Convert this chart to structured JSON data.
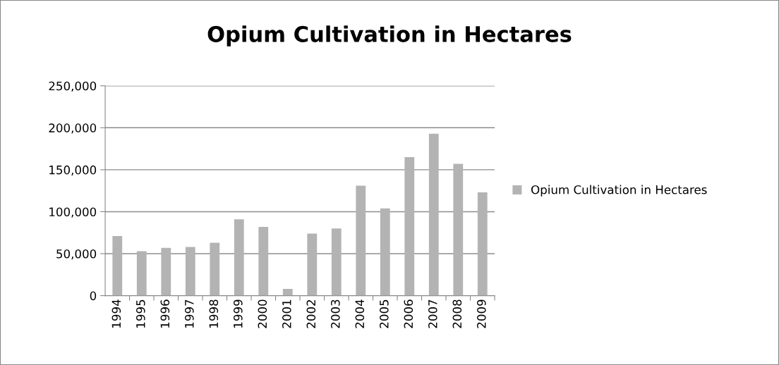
{
  "chart_data": {
    "type": "bar",
    "title": "Opium Cultivation in Hectares",
    "categories": [
      "1994",
      "1995",
      "1996",
      "1997",
      "1998",
      "1999",
      "2000",
      "2001",
      "2002",
      "2003",
      "2004",
      "2005",
      "2006",
      "2007",
      "2008",
      "2009"
    ],
    "series": [
      {
        "name": "Opium Cultivation in Hectares",
        "color": "#b3b3b3",
        "values": [
          71000,
          53000,
          57000,
          58000,
          63000,
          91000,
          82000,
          8000,
          74000,
          80000,
          131000,
          104000,
          165000,
          193000,
          157000,
          123000
        ]
      }
    ],
    "ylim": [
      0,
      250000
    ],
    "yticks": [
      {
        "value": 0,
        "label": "0"
      },
      {
        "value": 50000,
        "label": "50,000"
      },
      {
        "value": 100000,
        "label": "100,000"
      },
      {
        "value": 150000,
        "label": "150,000"
      },
      {
        "value": 200000,
        "label": "200,000"
      },
      {
        "value": 250000,
        "label": "250,000"
      }
    ],
    "grid": "y",
    "legend": "right"
  }
}
